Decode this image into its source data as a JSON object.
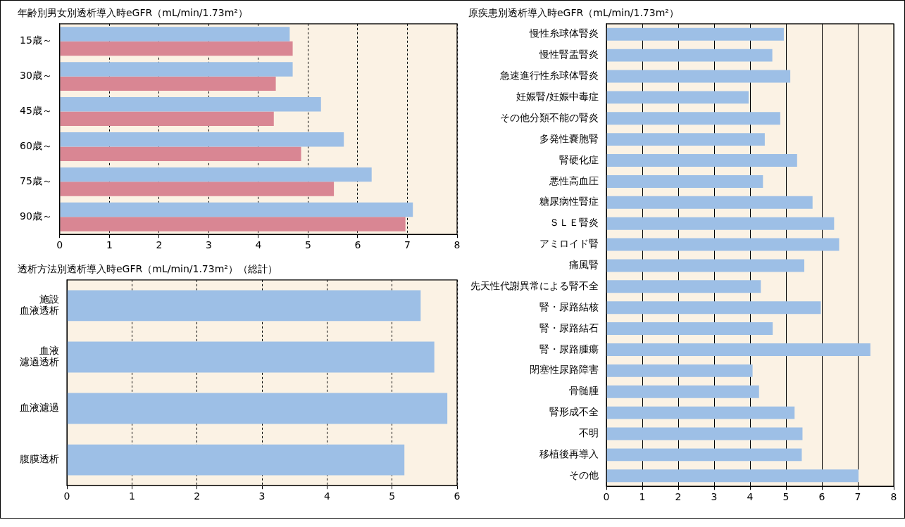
{
  "chart_data": [
    {
      "type": "bar",
      "orientation": "horizontal",
      "title": "年齢別男女別透析導入時eGFR（mL/min/1.73m²）",
      "categories": [
        "15歳～",
        "30歳～",
        "45歳～",
        "60歳～",
        "75歳～",
        "90歳～"
      ],
      "series": [
        {
          "color": "#9dbfe6",
          "values": [
            4.63,
            4.69,
            5.26,
            5.72,
            6.28,
            7.11
          ]
        },
        {
          "color": "#d98693",
          "values": [
            4.69,
            4.35,
            4.31,
            4.86,
            5.52,
            6.96
          ]
        }
      ],
      "xlim": [
        0,
        8
      ],
      "xticks": [
        0,
        1,
        2,
        3,
        4,
        5,
        6,
        7,
        8
      ],
      "grid": "x",
      "legend": false
    },
    {
      "type": "bar",
      "orientation": "horizontal",
      "title": "透析方法別透析導入時eGFR（mL/min/1.73m²）（総計）",
      "categories": [
        "施設血液透析",
        "血液濾過透析",
        "血液濾過",
        "腹膜透析"
      ],
      "series": [
        {
          "color": "#9dbfe6",
          "values": [
            5.44,
            5.65,
            5.85,
            5.19
          ]
        }
      ],
      "xlim": [
        0,
        6
      ],
      "xticks": [
        0,
        1,
        2,
        3,
        4,
        5,
        6
      ],
      "grid": "x",
      "legend": false
    },
    {
      "type": "bar",
      "orientation": "horizontal",
      "title": "原疾患別透析導入時eGFR（mL/min/1.73m²）",
      "categories": [
        "慢性糸球体腎炎",
        "慢性腎盂腎炎",
        "急速進行性糸球体腎炎",
        "妊娠腎/妊娠中毒症",
        "その他分類不能の腎炎",
        "多発性嚢胞腎",
        "腎硬化症",
        "悪性高血圧",
        "糖尿病性腎症",
        "ＳＬＥ腎炎",
        "アミロイド腎",
        "痛風腎",
        "先天性代謝異常による腎不全",
        "腎・尿路結核",
        "腎・尿路結石",
        "腎・尿路腫瘍",
        "閉塞性尿路障害",
        "骨髄腫",
        "腎形成不全",
        "不明",
        "移植後再導入",
        "その他"
      ],
      "series": [
        {
          "color": "#9dbfe6",
          "values": [
            4.94,
            4.62,
            5.12,
            3.96,
            4.84,
            4.41,
            5.31,
            4.36,
            5.74,
            6.34,
            6.48,
            5.51,
            4.3,
            5.97,
            4.63,
            7.35,
            4.07,
            4.25,
            5.24,
            5.46,
            5.44,
            7.02
          ]
        }
      ],
      "xlim": [
        0,
        8
      ],
      "xticks": [
        0,
        1,
        2,
        3,
        4,
        5,
        6,
        7,
        8
      ],
      "grid": "x",
      "legend": false
    }
  ]
}
